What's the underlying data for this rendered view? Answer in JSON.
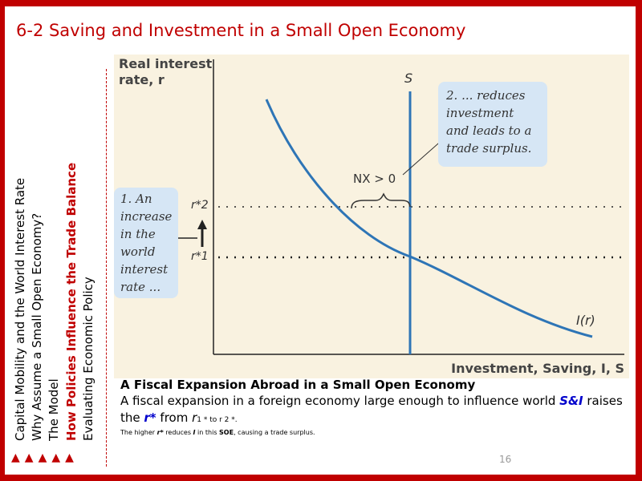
{
  "slide": {
    "title": "6-2 Saving and Investment in a Small Open Economy",
    "page_number": "16"
  },
  "sidebar": {
    "items": [
      {
        "label": "Capital Mobility and the World Interest Rate",
        "active": false
      },
      {
        "label": "Why Assume a Small Open Economy?",
        "active": false
      },
      {
        "label": "The Model",
        "active": false
      },
      {
        "label": "How Policies Influence the Trade Balance",
        "active": true
      },
      {
        "label": "Evaluating Economic Policy",
        "active": false
      }
    ],
    "nav_icon_count": 5,
    "nav_icon": "triangle-up-icon",
    "accent_color": "#c00000"
  },
  "diagram": {
    "y_axis_label_line1": "Real interest",
    "y_axis_label_line2": "rate, r",
    "x_axis_label": "Investment, Saving, I, S",
    "saving_label": "S",
    "investment_label": "I(r)",
    "nx_label": "NX > 0",
    "r2_label": "r*2",
    "r1_label": "r*1",
    "callout_1": "1. An increase in the world interest rate ...",
    "callout_2": "2. ... reduces investment and leads to a trade surplus.",
    "curve_color": "#2e75b6",
    "callout_color": "#d6e6f5",
    "background_color": "#f9f2e0"
  },
  "caption": {
    "title": "A Fiscal Expansion Abroad in a Small Open Economy",
    "body_before": "A fiscal expansion in a foreign economy large enough to influence world ",
    "body_si": "S&I",
    "body_mid": " raises the ",
    "body_rstar": "r*",
    "body_from": " from ",
    "body_r": "r",
    "body_sub1": "1 *",
    "body_to": " to ",
    "body_sub2": "r 2 *",
    "body_end": ".",
    "note_before": "The higher ",
    "note_rstar": "r*",
    "note_mid": " reduces ",
    "note_i": "I",
    "note_in": " in this ",
    "note_soe": "SOE",
    "note_end": ", causing a trade surplus."
  }
}
